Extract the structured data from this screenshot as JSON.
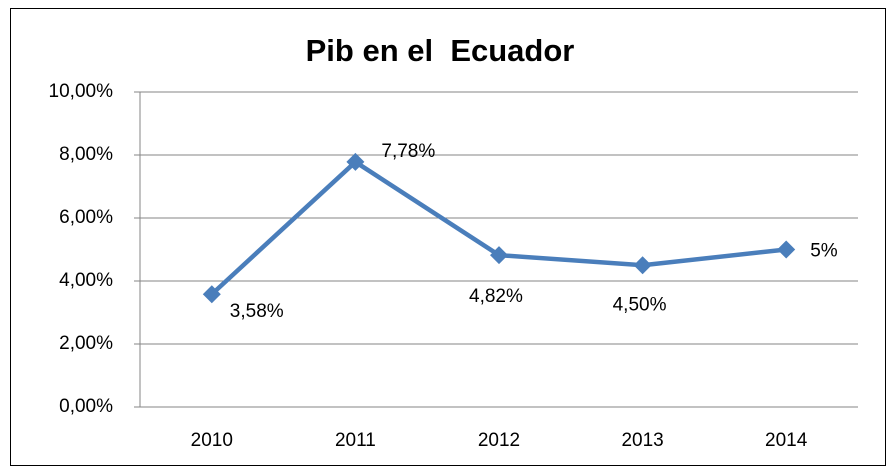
{
  "chart_data": {
    "type": "line",
    "title": "Pib en el  Ecuador",
    "categories": [
      "2010",
      "2011",
      "2012",
      "2013",
      "2014"
    ],
    "series": [
      {
        "name": "Pib",
        "color": "#4a7ebb",
        "values": [
          3.58,
          7.78,
          4.82,
          4.5,
          5
        ],
        "value_labels": [
          "3,58%",
          "7,78%",
          "4,82%",
          "4,50%",
          "5%"
        ]
      }
    ],
    "ylim": [
      0,
      10
    ],
    "yticks": [
      {
        "value": 0,
        "label": "0,00%"
      },
      {
        "value": 2,
        "label": "2,00%"
      },
      {
        "value": 4,
        "label": "4,00%"
      },
      {
        "value": 6,
        "label": "6,00%"
      },
      {
        "value": 8,
        "label": "8,00%"
      },
      {
        "value": 10,
        "label": "10,00%"
      }
    ],
    "grid": true
  }
}
